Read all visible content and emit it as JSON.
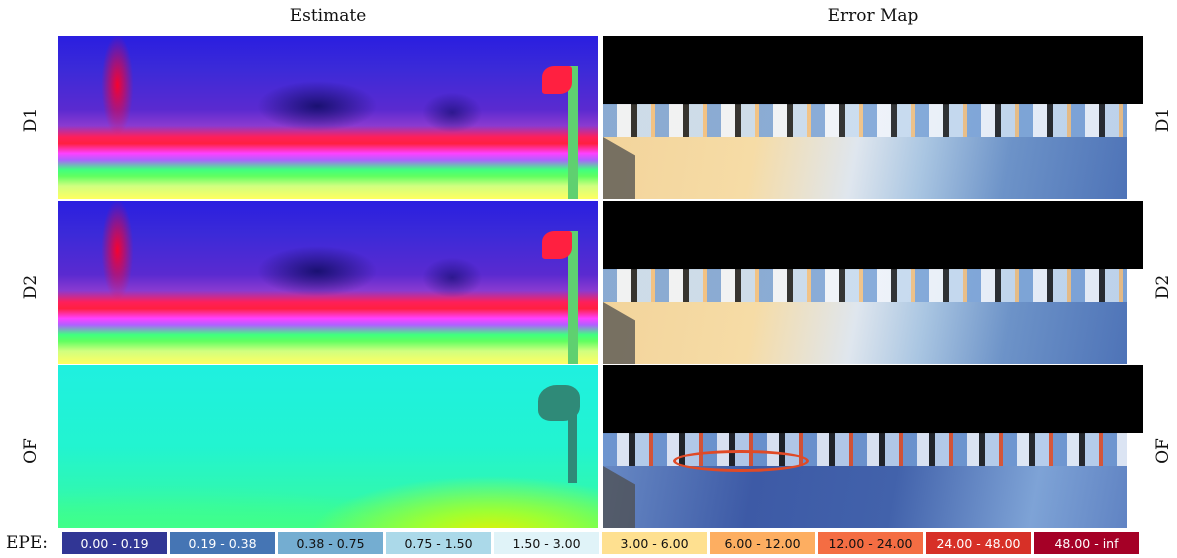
{
  "columns": {
    "estimate": "Estimate",
    "error_map": "Error Map"
  },
  "rows": [
    {
      "label": "D1"
    },
    {
      "label": "D2"
    },
    {
      "label": "OF"
    }
  ],
  "legend": {
    "label": "EPE:",
    "bins": [
      {
        "text": "0.00 - 0.19",
        "color": "#313695",
        "text_color": "#ffffff"
      },
      {
        "text": "0.19 - 0.38",
        "color": "#4575b4",
        "text_color": "#ffffff"
      },
      {
        "text": "0.38 - 0.75",
        "color": "#74add1",
        "text_color": "#111111"
      },
      {
        "text": "0.75 - 1.50",
        "color": "#abd9e9",
        "text_color": "#111111"
      },
      {
        "text": "1.50 - 3.00",
        "color": "#e0f3f8",
        "text_color": "#111111"
      },
      {
        "text": "3.00 - 6.00",
        "color": "#fee090",
        "text_color": "#111111"
      },
      {
        "text": "6.00 - 12.00",
        "color": "#fdae61",
        "text_color": "#111111"
      },
      {
        "text": "12.00 - 24.00",
        "color": "#f46d43",
        "text_color": "#111111"
      },
      {
        "text": "24.00 - 48.00",
        "color": "#d73027",
        "text_color": "#ffffff"
      },
      {
        "text": "48.00 - inf",
        "color": "#a50026",
        "text_color": "#ffffff"
      }
    ]
  }
}
